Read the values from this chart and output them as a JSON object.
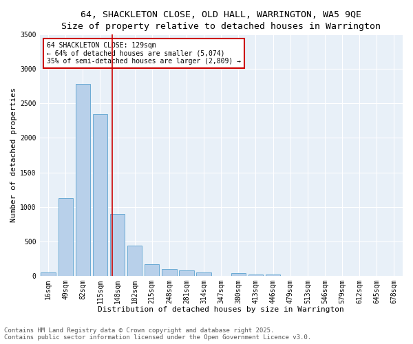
{
  "title_line1": "64, SHACKLETON CLOSE, OLD HALL, WARRINGTON, WA5 9QE",
  "title_line2": "Size of property relative to detached houses in Warrington",
  "xlabel": "Distribution of detached houses by size in Warrington",
  "ylabel": "Number of detached properties",
  "categories": [
    "16sqm",
    "49sqm",
    "82sqm",
    "115sqm",
    "148sqm",
    "182sqm",
    "215sqm",
    "248sqm",
    "281sqm",
    "314sqm",
    "347sqm",
    "380sqm",
    "413sqm",
    "446sqm",
    "479sqm",
    "513sqm",
    "546sqm",
    "579sqm",
    "612sqm",
    "645sqm",
    "678sqm"
  ],
  "values": [
    50,
    1130,
    2780,
    2340,
    900,
    440,
    165,
    100,
    80,
    50,
    0,
    40,
    20,
    15,
    0,
    0,
    0,
    0,
    0,
    0,
    0
  ],
  "bar_color": "#b8d0ea",
  "bar_edge_color": "#6aaad4",
  "background_color": "#e8f0f8",
  "vline_color": "#cc0000",
  "annotation_text": "64 SHACKLETON CLOSE: 129sqm\n← 64% of detached houses are smaller (5,074)\n35% of semi-detached houses are larger (2,809) →",
  "annotation_box_color": "#cc0000",
  "ylim": [
    0,
    3500
  ],
  "yticks": [
    0,
    500,
    1000,
    1500,
    2000,
    2500,
    3000,
    3500
  ],
  "footer_line1": "Contains HM Land Registry data © Crown copyright and database right 2025.",
  "footer_line2": "Contains public sector information licensed under the Open Government Licence v3.0.",
  "title_fontsize": 9.5,
  "subtitle_fontsize": 8.5,
  "axis_label_fontsize": 8,
  "tick_fontsize": 7,
  "annotation_fontsize": 7,
  "footer_fontsize": 6.5
}
